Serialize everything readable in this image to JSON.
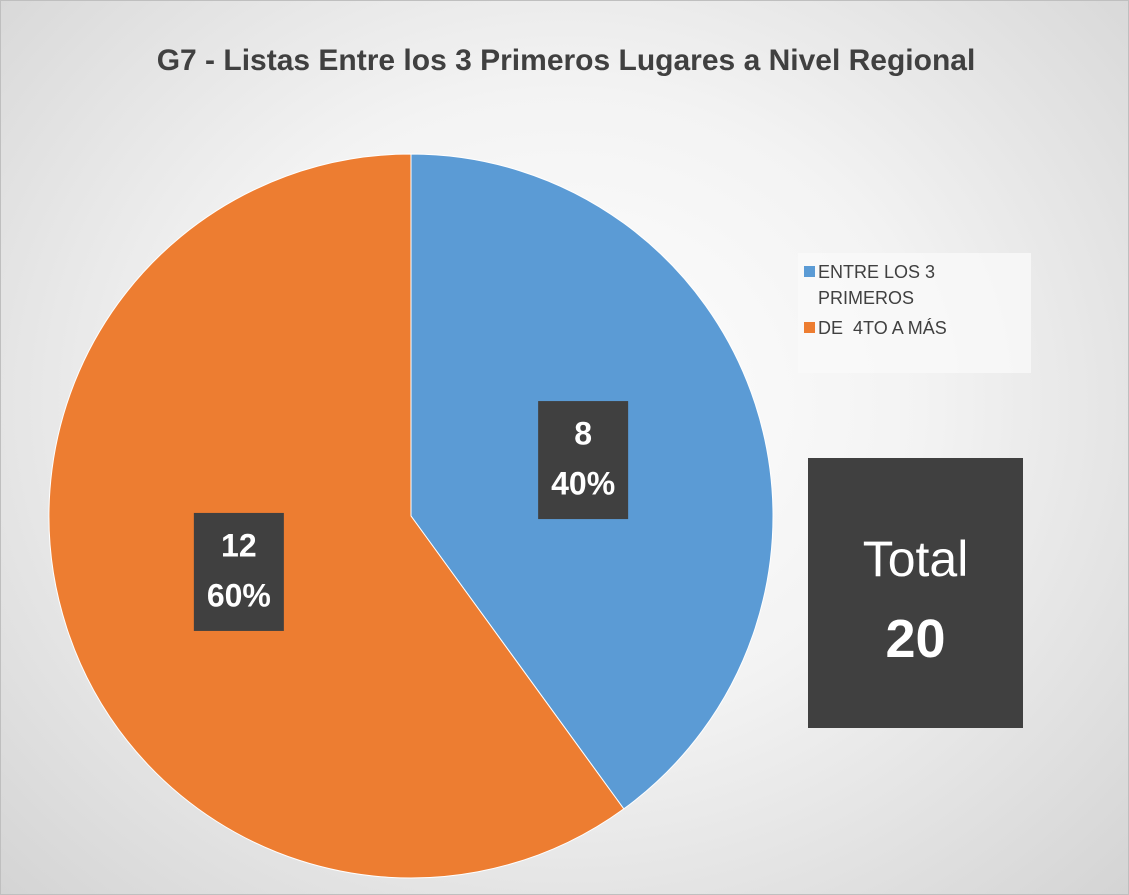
{
  "chart_data": {
    "type": "pie",
    "title": "G7 - Listas Entre los 3 Primeros Lugares a Nivel Regional",
    "categories": [
      "ENTRE LOS 3 PRIMEROS",
      "DE  4TO A MÁS"
    ],
    "values": [
      8,
      12
    ],
    "percentages": [
      40,
      60
    ],
    "percentage_labels": [
      "40%",
      "60%"
    ],
    "colors": [
      "#5b9bd5",
      "#ed7d31"
    ],
    "legend": "right",
    "total_label": "Total",
    "total": 20
  }
}
